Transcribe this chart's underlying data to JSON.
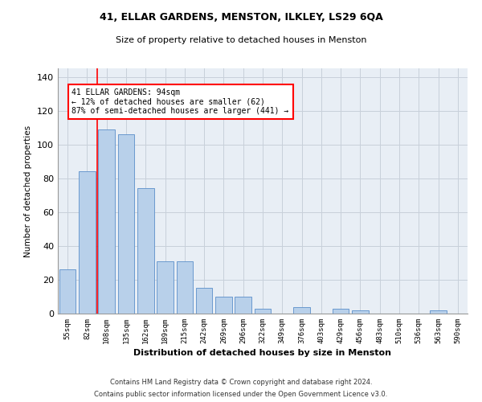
{
  "title1": "41, ELLAR GARDENS, MENSTON, ILKLEY, LS29 6QA",
  "title2": "Size of property relative to detached houses in Menston",
  "xlabel": "Distribution of detached houses by size in Menston",
  "ylabel": "Number of detached properties",
  "categories": [
    "55sqm",
    "82sqm",
    "108sqm",
    "135sqm",
    "162sqm",
    "189sqm",
    "215sqm",
    "242sqm",
    "269sqm",
    "296sqm",
    "322sqm",
    "349sqm",
    "376sqm",
    "403sqm",
    "429sqm",
    "456sqm",
    "483sqm",
    "510sqm",
    "536sqm",
    "563sqm",
    "590sqm"
  ],
  "values": [
    26,
    84,
    109,
    106,
    74,
    31,
    31,
    15,
    10,
    10,
    3,
    0,
    4,
    0,
    3,
    2,
    0,
    0,
    0,
    2,
    0
  ],
  "bar_color": "#b8d0ea",
  "bar_edge_color": "#5b8fc9",
  "annotation_text": "41 ELLAR GARDENS: 94sqm\n← 12% of detached houses are smaller (62)\n87% of semi-detached houses are larger (441) →",
  "annotation_box_color": "white",
  "annotation_box_edge_color": "red",
  "vline_color": "red",
  "ylim": [
    0,
    145
  ],
  "yticks": [
    0,
    20,
    40,
    60,
    80,
    100,
    120,
    140
  ],
  "footer1": "Contains HM Land Registry data © Crown copyright and database right 2024.",
  "footer2": "Contains public sector information licensed under the Open Government Licence v3.0.",
  "grid_color": "#c8d0da",
  "bg_color": "#e8eef5"
}
